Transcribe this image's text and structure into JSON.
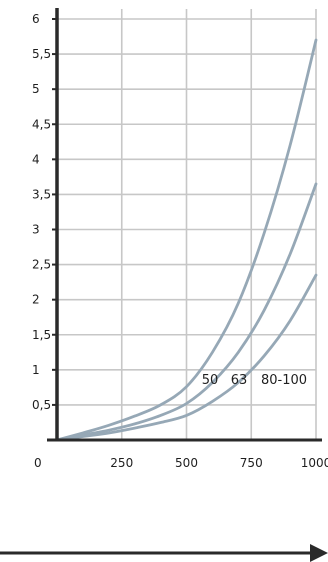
{
  "chart_data": {
    "type": "line",
    "title": "",
    "xlabel": "",
    "ylabel": "",
    "xlim": [
      0,
      1000
    ],
    "ylim": [
      0,
      6
    ],
    "grid": true,
    "x_ticks": [
      "0",
      "250",
      "500",
      "750",
      "1000"
    ],
    "y_ticks": [
      "0,5",
      "1",
      "1,5",
      "2",
      "2,5",
      "3",
      "3,5",
      "4",
      "4,5",
      "5",
      "5,5",
      "6"
    ],
    "series": [
      {
        "name": "50",
        "x": [
          0,
          100,
          200,
          300,
          400,
          500,
          600,
          700,
          800,
          900,
          1000
        ],
        "values": [
          0,
          0.1,
          0.21,
          0.34,
          0.5,
          0.76,
          1.25,
          1.95,
          2.95,
          4.2,
          5.7
        ]
      },
      {
        "name": "63",
        "x": [
          0,
          100,
          200,
          300,
          400,
          500,
          600,
          700,
          800,
          900,
          1000
        ],
        "values": [
          0,
          0.07,
          0.14,
          0.23,
          0.35,
          0.52,
          0.82,
          1.25,
          1.85,
          2.65,
          3.65
        ]
      },
      {
        "name": "80-100",
        "x": [
          0,
          100,
          200,
          300,
          400,
          500,
          600,
          700,
          800,
          900,
          1000
        ],
        "values": [
          0,
          0.05,
          0.1,
          0.17,
          0.25,
          0.35,
          0.55,
          0.82,
          1.2,
          1.7,
          2.35
        ]
      }
    ],
    "colors": {
      "curve": "#96a8b6",
      "grid": "#c7c7c7",
      "axis": "#2a2a2a"
    }
  }
}
